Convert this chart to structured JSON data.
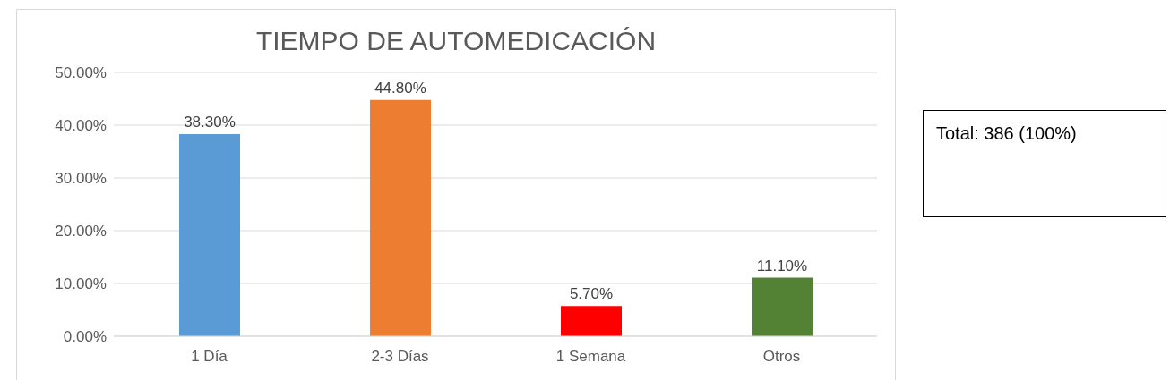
{
  "chart_data": {
    "type": "bar",
    "title": "TIEMPO DE AUTOMEDICACIÓN",
    "categories": [
      "1 Día",
      "2-3 Días",
      "1 Semana",
      "Otros"
    ],
    "values": [
      38.3,
      44.8,
      5.7,
      11.1
    ],
    "colors": [
      "#5b9bd5",
      "#ed7d31",
      "#ff0000",
      "#548235"
    ],
    "value_labels": [
      "38.30%",
      "44.80%",
      "5.70%",
      "11.10%"
    ],
    "ylim": [
      0,
      50
    ],
    "yticks": [
      {
        "value": 0,
        "label": "0.00%"
      },
      {
        "value": 10,
        "label": "10.00%"
      },
      {
        "value": 20,
        "label": "20.00%"
      },
      {
        "value": 30,
        "label": "30.00%"
      },
      {
        "value": 40,
        "label": "40.00%"
      },
      {
        "value": 50,
        "label": "50.00%"
      }
    ],
    "grid": "y",
    "legend": false,
    "annotations": [
      "Total: 386 (100%)"
    ]
  }
}
